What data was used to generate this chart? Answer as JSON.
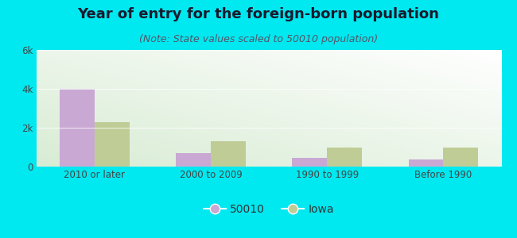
{
  "title": "Year of entry for the foreign-born population",
  "subtitle": "(Note: State values scaled to 50010 population)",
  "categories": [
    "2010 or later",
    "2000 to 2009",
    "1990 to 1999",
    "Before 1990"
  ],
  "values_50010": [
    4000,
    700,
    450,
    350
  ],
  "values_iowa": [
    2300,
    1300,
    1000,
    1000
  ],
  "color_50010": "#c9a8d4",
  "color_iowa": "#c0cc96",
  "background_outer": "#00e8f0",
  "ylim": [
    0,
    6000
  ],
  "yticks": [
    0,
    2000,
    4000,
    6000
  ],
  "ytick_labels": [
    "0",
    "2k",
    "4k",
    "6k"
  ],
  "legend_labels": [
    "50010",
    "Iowa"
  ],
  "bar_width": 0.3,
  "title_fontsize": 13,
  "subtitle_fontsize": 9
}
